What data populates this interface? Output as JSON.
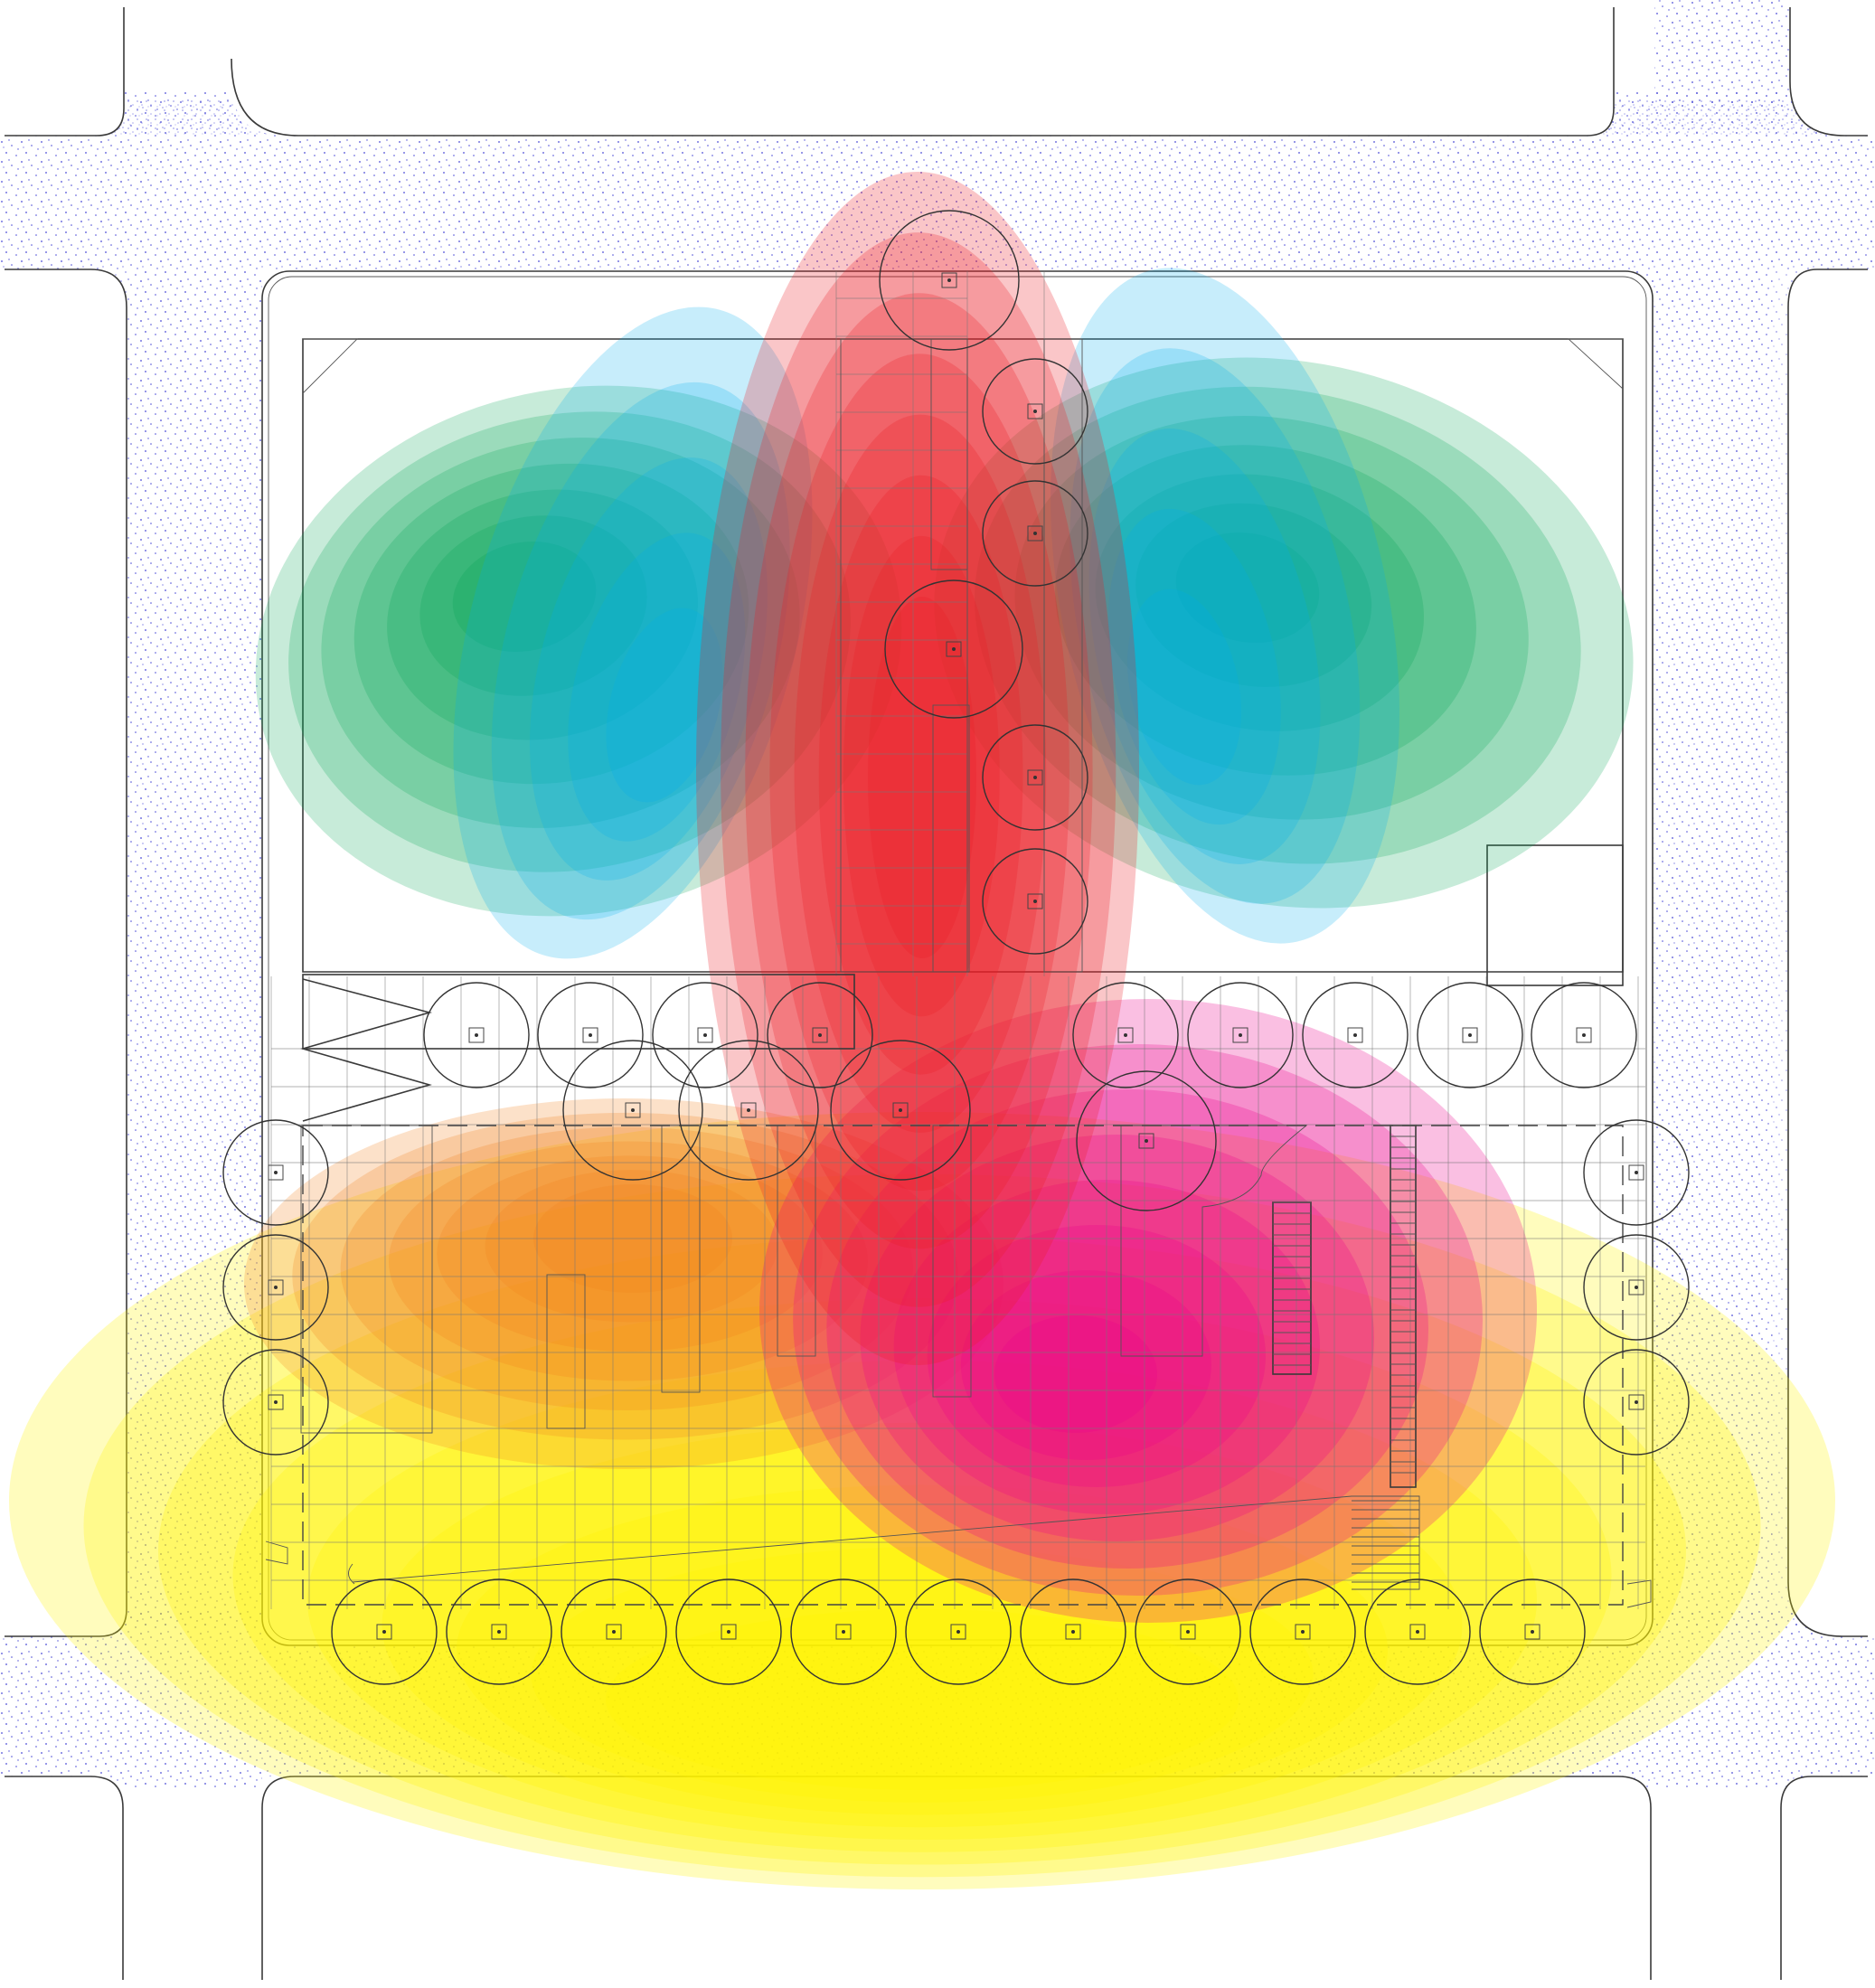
{
  "diagram": {
    "kind": "site-plan-activity-heatmap",
    "background_color": "#ffffff",
    "pavement_stipple_color": "#4b4bd6",
    "zones": [
      {
        "id": "yellow",
        "color": "#fff200",
        "center": "bottom"
      },
      {
        "id": "orange",
        "color": "#f4801f",
        "center": "middle-left"
      },
      {
        "id": "magenta",
        "color": "#ec008c",
        "center": "middle-right"
      },
      {
        "id": "red",
        "color": "#ed1c24",
        "center": "center-vertical"
      },
      {
        "id": "green-left",
        "color": "#00a651",
        "center": "upper-left"
      },
      {
        "id": "green-right",
        "color": "#00a651",
        "center": "upper-right"
      },
      {
        "id": "blue-left",
        "color": "#00aeef",
        "center": "upper-left"
      },
      {
        "id": "blue-right",
        "color": "#00aeef",
        "center": "upper-right"
      }
    ],
    "labels": []
  }
}
